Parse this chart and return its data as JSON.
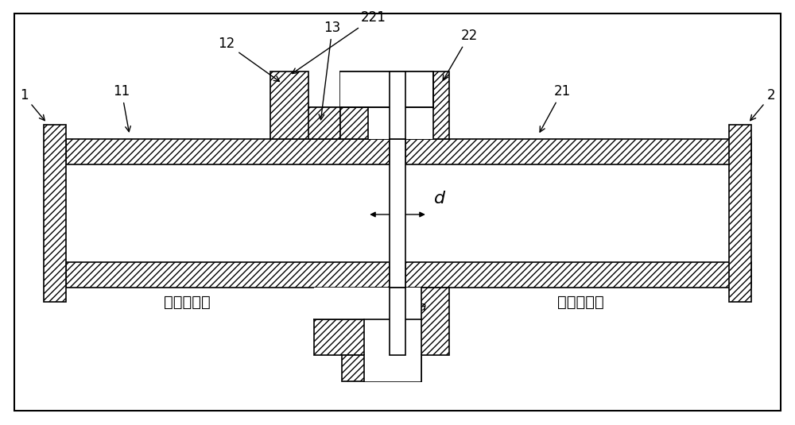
{
  "bg_color": "#ffffff",
  "lc": "#000000",
  "lw": 1.2,
  "hatch": "////",
  "label_texts": {
    "1": "1",
    "2": "2",
    "11": "11",
    "12": "12",
    "13": "13",
    "21": "21",
    "22": "22",
    "221": "221",
    "zh1": "第一连接部",
    "zh2": "第二连接部"
  }
}
